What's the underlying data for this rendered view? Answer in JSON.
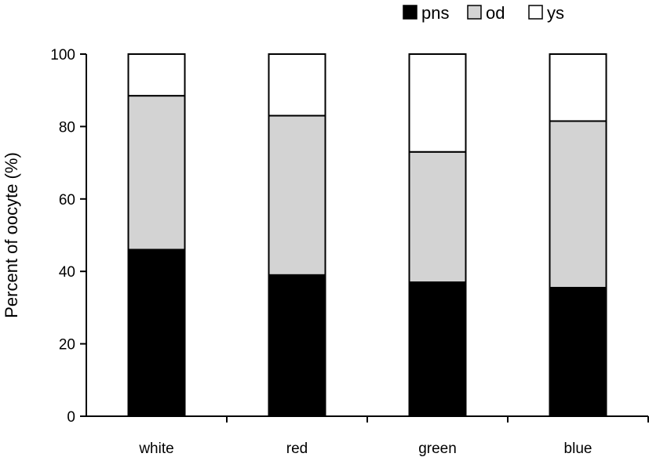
{
  "chart_data": {
    "type": "bar",
    "stacked": true,
    "categories": [
      "white",
      "red",
      "green",
      "blue"
    ],
    "series": [
      {
        "name": "pns",
        "color": "#000000",
        "values": [
          46,
          39,
          37,
          35.5
        ]
      },
      {
        "name": "od",
        "color": "#d3d3d3",
        "values": [
          42.5,
          44,
          36,
          46
        ]
      },
      {
        "name": "ys",
        "color": "#ffffff",
        "values": [
          11.5,
          17,
          27,
          18.5
        ]
      }
    ],
    "ylabel": "Percent of oocyte (%)",
    "xlabel": "",
    "ylim": [
      0,
      100
    ],
    "yticks": [
      0,
      20,
      40,
      60,
      80,
      100
    ],
    "legend_position": "top-right",
    "grid": false
  }
}
